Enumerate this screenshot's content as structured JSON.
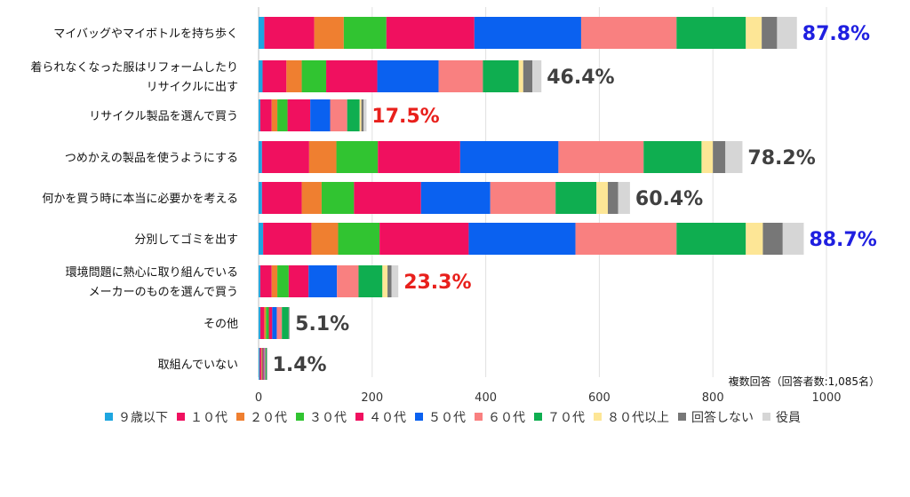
{
  "chart_data": {
    "type": "bar",
    "orientation": "horizontal",
    "stacked": true,
    "note": "複数回答（回答者数:1,085名）",
    "categories": [
      [
        "マイバッグやマイボトルを持ち歩く"
      ],
      [
        "着られなくなった服はリフォームしたり",
        "リサイクルに出す"
      ],
      [
        "リサイクル製品を選んで買う"
      ],
      [
        "つめかえの製品を使うようにする"
      ],
      [
        "何かを買う時に本当に必要かを考える"
      ],
      [
        "分別してゴミを出す"
      ],
      [
        "環境問題に熱心に取り組んでいる",
        "メーカーのものを選んで買う"
      ],
      [
        "その他"
      ],
      [
        "取組んでいない"
      ]
    ],
    "percent_labels": [
      "87.8%",
      "46.4%",
      "17.5%",
      "78.2%",
      "60.4%",
      "88.7%",
      "23.3%",
      "5.1%",
      "1.4%"
    ],
    "percent_colors": [
      "#1f1fe0",
      "#404040",
      "#e8201c",
      "#404040",
      "#404040",
      "#1f1fe0",
      "#e8201c",
      "#404040",
      "#404040"
    ],
    "series": [
      {
        "name": "９歳以下",
        "color": "#1ea6e0",
        "values": [
          10,
          7,
          3,
          6,
          6,
          8,
          3,
          3,
          2
        ]
      },
      {
        "name": "１０代",
        "color": "#f0105f",
        "values": [
          88,
          42,
          20,
          83,
          70,
          85,
          20,
          7,
          3
        ]
      },
      {
        "name": "２０代",
        "color": "#ef7f30",
        "values": [
          52,
          27,
          10,
          48,
          35,
          47,
          10,
          3,
          1
        ]
      },
      {
        "name": "３０代",
        "color": "#31c431",
        "values": [
          75,
          43,
          18,
          73,
          57,
          73,
          20,
          5,
          1
        ]
      },
      {
        "name": "４０代",
        "color": "#f0105f",
        "values": [
          155,
          90,
          40,
          145,
          118,
          157,
          35,
          6,
          2
        ]
      },
      {
        "name": "５０代",
        "color": "#0a61f0",
        "values": [
          188,
          108,
          35,
          173,
          122,
          188,
          50,
          8,
          1
        ]
      },
      {
        "name": "６０代",
        "color": "#f98080",
        "values": [
          168,
          78,
          30,
          150,
          115,
          178,
          38,
          9,
          2
        ]
      },
      {
        "name": "７０代",
        "color": "#0fae50",
        "values": [
          122,
          63,
          22,
          102,
          72,
          122,
          42,
          12,
          2
        ]
      },
      {
        "name": "８０代以上",
        "color": "#fde696",
        "values": [
          28,
          8,
          3,
          20,
          20,
          30,
          9,
          0,
          0
        ]
      },
      {
        "name": "回答しない",
        "color": "#777777",
        "values": [
          27,
          16,
          4,
          22,
          18,
          35,
          7,
          1,
          1
        ]
      },
      {
        "name": "役員",
        "color": "#d6d6d6",
        "values": [
          35,
          16,
          5,
          30,
          21,
          37,
          12,
          1,
          0
        ]
      }
    ],
    "x_ticks": [
      0,
      200,
      400,
      600,
      800,
      1000
    ],
    "xlim": [
      0,
      1000
    ],
    "grid": true,
    "legend_position": "bottom"
  }
}
